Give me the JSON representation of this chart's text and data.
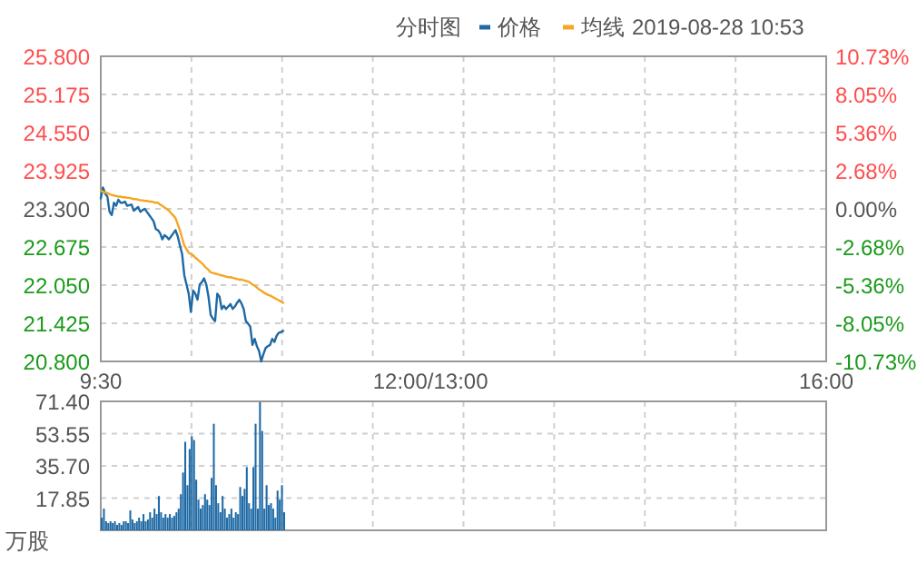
{
  "chart_data": [
    {
      "type": "line",
      "subtitle": "分时图",
      "legend": "top",
      "grid": true,
      "annotations": [
        "2019-08-28 10:53"
      ],
      "categories": [
        "9:30",
        null,
        null,
        null,
        null,
        null,
        null,
        null,
        null,
        null,
        null,
        null,
        null,
        null,
        null,
        null,
        null,
        null,
        null,
        null,
        null,
        null,
        null,
        null,
        null,
        null,
        null,
        null,
        null,
        null,
        null,
        null,
        null,
        null,
        null,
        null,
        null,
        null,
        null,
        null,
        null,
        null,
        null,
        null,
        null,
        null,
        null,
        null,
        null,
        null,
        null,
        null,
        null,
        null,
        null,
        null,
        null,
        null,
        null,
        null,
        null,
        null,
        null,
        null,
        null,
        null,
        null,
        null,
        null,
        null,
        null,
        null,
        null,
        null,
        null,
        null,
        null,
        null,
        null,
        null,
        null,
        null,
        null,
        null,
        null,
        null,
        null,
        null,
        null,
        null,
        null,
        null,
        null,
        null,
        null,
        null,
        null,
        null,
        null,
        null,
        null,
        null,
        null,
        null,
        null,
        null,
        null,
        null,
        null,
        null,
        null,
        null,
        null,
        null,
        null,
        null,
        null,
        null,
        null,
        null,
        null,
        null,
        null,
        null,
        null,
        null,
        null,
        null,
        null,
        null,
        null,
        null,
        null,
        null,
        null,
        null,
        null,
        null,
        null,
        null,
        null,
        null,
        null,
        null,
        null,
        null,
        null,
        null,
        null,
        null,
        "12:00/13:00",
        null,
        null,
        null,
        null,
        null,
        null,
        null,
        null,
        null,
        null,
        null,
        null,
        null,
        null,
        null,
        null,
        null,
        null,
        null,
        null,
        null,
        null,
        null,
        null,
        null,
        null,
        null,
        null,
        null,
        null,
        null,
        null,
        null,
        null,
        null,
        null,
        null,
        null,
        null,
        null,
        null,
        null,
        null,
        null,
        null,
        null,
        null,
        null,
        null,
        null,
        null,
        null,
        null,
        null,
        null,
        null,
        null,
        null,
        null,
        null,
        null,
        null,
        null,
        null,
        null,
        null,
        null,
        null,
        null,
        null,
        null,
        null,
        null,
        null,
        null,
        null,
        null,
        null,
        null,
        null,
        null,
        null,
        null,
        null,
        null,
        null,
        null,
        null,
        null,
        null,
        null,
        null,
        null,
        null,
        null,
        null,
        null,
        null,
        null,
        null,
        null,
        null,
        null,
        null,
        null,
        null,
        null,
        null,
        null,
        null,
        null,
        null,
        null,
        null,
        null,
        null,
        null,
        null,
        null,
        null,
        null,
        null,
        null,
        null,
        null,
        null,
        null,
        null,
        null,
        null,
        null,
        null,
        null,
        null,
        null,
        null,
        null,
        null,
        null,
        null,
        null,
        null,
        null,
        null,
        null,
        null,
        null,
        null,
        null,
        null,
        null,
        null,
        null,
        null,
        null,
        null,
        null,
        null,
        null,
        null,
        null,
        null,
        null,
        null,
        null,
        null,
        null,
        null,
        null,
        null,
        null,
        null,
        null,
        null,
        null,
        null,
        null,
        null,
        null,
        "16:00"
      ],
      "ylim": [
        20.8,
        25.8
      ],
      "yticks": [
        {
          "value": 20.8,
          "label": "20.800"
        },
        {
          "value": 21.425,
          "label": "21.425"
        },
        {
          "value": 22.05,
          "label": "22.050"
        },
        {
          "value": 22.675,
          "label": "22.675"
        },
        {
          "value": 23.3,
          "label": "23.300"
        },
        {
          "value": 23.925,
          "label": "23.925"
        },
        {
          "value": 24.55,
          "label": "24.550"
        },
        {
          "value": 25.175,
          "label": "25.175"
        },
        {
          "value": 25.8,
          "label": "25.800"
        }
      ],
      "y2lim": [
        -10.73,
        10.73
      ],
      "y2ticks": [
        {
          "value": -10.73,
          "label": "-10.73%"
        },
        {
          "value": -8.05,
          "label": "-8.05%"
        },
        {
          "value": -5.36,
          "label": "-5.36%"
        },
        {
          "value": -2.68,
          "label": "-2.68%"
        },
        {
          "value": 0,
          "label": "0.00%"
        },
        {
          "value": 2.68,
          "label": "2.68%"
        },
        {
          "value": 5.36,
          "label": "5.36%"
        },
        {
          "value": 8.05,
          "label": "8.05%"
        },
        {
          "value": 10.73,
          "label": "10.73%"
        }
      ],
      "series": [
        {
          "name": "价格",
          "color": "#1f6aa5",
          "values": [
            23.47,
            23.65,
            23.55,
            23.5,
            23.25,
            23.2,
            23.4,
            23.35,
            23.45,
            23.4,
            23.4,
            23.42,
            23.35,
            23.36,
            23.37,
            23.27,
            23.3,
            23.33,
            23.25,
            23.28,
            23.3,
            23.25,
            23.2,
            23.15,
            23.1,
            22.97,
            22.95,
            22.9,
            22.8,
            22.87,
            22.84,
            22.8,
            22.85,
            22.9,
            22.95,
            22.85,
            22.7,
            22.56,
            22.21,
            22.06,
            21.91,
            21.61,
            21.96,
            21.91,
            21.81,
            22.06,
            22.1,
            22.16,
            22.06,
            21.86,
            21.56,
            21.5,
            21.46,
            21.91,
            21.86,
            21.66,
            21.71,
            21.66,
            21.7,
            21.74,
            21.66,
            21.7,
            21.76,
            21.81,
            21.75,
            21.66,
            21.46,
            21.42,
            21.37,
            21.07,
            21.17,
            21.05,
            20.97,
            20.8,
            20.92,
            21.02,
            21.05,
            21.07,
            21.17,
            21.12,
            21.22,
            21.27,
            21.28,
            21.3,
            null,
            null,
            null,
            null,
            null,
            null,
            null,
            null,
            null,
            null,
            null,
            null,
            null,
            null,
            null,
            null,
            null,
            null,
            null,
            null,
            null,
            null,
            null,
            null,
            null,
            null,
            null,
            null,
            null,
            null,
            null,
            null,
            null,
            null,
            null,
            null,
            null,
            null,
            null,
            null,
            null,
            null,
            null,
            null,
            null,
            null,
            null,
            null,
            null,
            null,
            null,
            null,
            null,
            null,
            null,
            null,
            null,
            null,
            null,
            null,
            null,
            null,
            null,
            null,
            null,
            null,
            null,
            null,
            null,
            null,
            null,
            null,
            null,
            null,
            null,
            null,
            null,
            null,
            null,
            null,
            null,
            null,
            null,
            null,
            null,
            null,
            null,
            null,
            null,
            null,
            null,
            null,
            null,
            null,
            null,
            null,
            null,
            null,
            null,
            null,
            null,
            null,
            null,
            null,
            null,
            null,
            null,
            null,
            null,
            null,
            null,
            null,
            null,
            null,
            null,
            null,
            null,
            null,
            null,
            null,
            null,
            null,
            null,
            null,
            null,
            null,
            null,
            null,
            null,
            null,
            null,
            null,
            null,
            null,
            null,
            null,
            null,
            null,
            null,
            null,
            null,
            null,
            null,
            null,
            null,
            null,
            null,
            null,
            null,
            null,
            null,
            null,
            null,
            null,
            null,
            null,
            null,
            null,
            null,
            null,
            null,
            null,
            null,
            null,
            null,
            null,
            null,
            null,
            null,
            null,
            null,
            null,
            null,
            null,
            null,
            null,
            null,
            null,
            null,
            null,
            null,
            null,
            null,
            null,
            null,
            null,
            null,
            null,
            null,
            null,
            null,
            null,
            null,
            null,
            null,
            null,
            null,
            null,
            null,
            null,
            null,
            null,
            null,
            null,
            null,
            null,
            null,
            null,
            null,
            null,
            null,
            null,
            null,
            null,
            null,
            null,
            null,
            null,
            null,
            null,
            null,
            null,
            null,
            null,
            null,
            null,
            null,
            null,
            null,
            null,
            null,
            null,
            null,
            null,
            null,
            null,
            null,
            null,
            null,
            null,
            null,
            null,
            null,
            null,
            null,
            null,
            null
          ]
        },
        {
          "name": "均线",
          "color": "#f5a623",
          "values": [
            23.6,
            23.58,
            23.57,
            23.56,
            23.54,
            23.53,
            23.52,
            23.51,
            23.5,
            23.5,
            23.49,
            23.49,
            23.48,
            23.48,
            23.47,
            23.46,
            23.46,
            23.45,
            23.44,
            23.44,
            23.43,
            23.43,
            23.42,
            23.42,
            23.41,
            23.4,
            23.4,
            23.37,
            23.35,
            23.32,
            23.3,
            23.27,
            23.23,
            23.19,
            23.15,
            23.05,
            22.95,
            22.82,
            22.7,
            22.64,
            22.58,
            22.56,
            22.54,
            22.5,
            22.47,
            22.44,
            22.41,
            22.37,
            22.33,
            22.3,
            22.26,
            22.25,
            22.24,
            22.23,
            22.22,
            22.21,
            22.2,
            22.19,
            22.18,
            22.18,
            22.17,
            22.16,
            22.15,
            22.14,
            22.14,
            22.13,
            22.12,
            22.11,
            22.09,
            22.06,
            22.04,
            22.01,
            21.98,
            21.96,
            21.93,
            21.91,
            21.89,
            21.88,
            21.86,
            21.84,
            21.82,
            21.8,
            21.78,
            21.76,
            null,
            null,
            null,
            null,
            null,
            null,
            null,
            null,
            null,
            null,
            null,
            null,
            null,
            null,
            null,
            null,
            null,
            null,
            null,
            null,
            null,
            null,
            null,
            null,
            null,
            null,
            null,
            null,
            null,
            null,
            null,
            null,
            null,
            null,
            null,
            null,
            null,
            null,
            null,
            null,
            null,
            null,
            null,
            null,
            null,
            null,
            null,
            null,
            null,
            null,
            null,
            null,
            null,
            null,
            null,
            null,
            null,
            null,
            null,
            null,
            null,
            null,
            null,
            null,
            null,
            null,
            null,
            null,
            null,
            null,
            null,
            null,
            null,
            null,
            null,
            null,
            null,
            null,
            null,
            null,
            null,
            null,
            null,
            null,
            null,
            null,
            null,
            null,
            null,
            null,
            null,
            null,
            null,
            null,
            null,
            null,
            null,
            null,
            null,
            null,
            null,
            null,
            null,
            null,
            null,
            null,
            null,
            null,
            null,
            null,
            null,
            null,
            null,
            null,
            null,
            null,
            null,
            null,
            null,
            null,
            null,
            null,
            null,
            null,
            null,
            null,
            null,
            null,
            null,
            null,
            null,
            null,
            null,
            null,
            null,
            null,
            null,
            null,
            null,
            null,
            null,
            null,
            null,
            null,
            null,
            null,
            null,
            null,
            null,
            null,
            null,
            null,
            null,
            null,
            null,
            null,
            null,
            null,
            null,
            null,
            null,
            null,
            null,
            null,
            null,
            null,
            null,
            null,
            null,
            null,
            null,
            null,
            null,
            null,
            null,
            null,
            null,
            null,
            null,
            null,
            null,
            null,
            null,
            null,
            null,
            null,
            null,
            null,
            null,
            null,
            null,
            null,
            null,
            null,
            null,
            null,
            null,
            null,
            null,
            null,
            null,
            null,
            null,
            null,
            null,
            null,
            null,
            null,
            null,
            null,
            null,
            null,
            null,
            null,
            null,
            null,
            null,
            null,
            null,
            null,
            null,
            null,
            null,
            null,
            null,
            null,
            null,
            null,
            null,
            null,
            null,
            null,
            null,
            null,
            null,
            null,
            null,
            null,
            null,
            null,
            null,
            null,
            null,
            null,
            null,
            null,
            null
          ]
        }
      ]
    },
    {
      "type": "bar",
      "ylabel": "万股",
      "grid": true,
      "tick_labels": "y",
      "color": "#1f6aa5",
      "categories": [
        null,
        null,
        null,
        null,
        null,
        null,
        null,
        null,
        null,
        null,
        null,
        null,
        null,
        null,
        null,
        null,
        null,
        null,
        null,
        null,
        null,
        null,
        null,
        null,
        null,
        null,
        null,
        null,
        null,
        null,
        null,
        null,
        null,
        null,
        null,
        null,
        null,
        null,
        null,
        null,
        null,
        null,
        null,
        null,
        null,
        null,
        null,
        null,
        null,
        null,
        null,
        null,
        null,
        null,
        null,
        null,
        null,
        null,
        null,
        null,
        null,
        null,
        null,
        null,
        null,
        null,
        null,
        null,
        null,
        null,
        null,
        null,
        null,
        null,
        null,
        null,
        null,
        null,
        null,
        null,
        null,
        null,
        null,
        null,
        null,
        null,
        null,
        null,
        null,
        null,
        null,
        null,
        null,
        null,
        null,
        null,
        null,
        null,
        null,
        null,
        null,
        null,
        null,
        null,
        null,
        null,
        null,
        null,
        null,
        null,
        null,
        null,
        null,
        null,
        null,
        null,
        null,
        null,
        null,
        null,
        null,
        null,
        null,
        null,
        null,
        null,
        null,
        null,
        null,
        null,
        null,
        null,
        null,
        null,
        null,
        null,
        null,
        null,
        null,
        null,
        null,
        null,
        null,
        null,
        null,
        null,
        null,
        null,
        null,
        null,
        null,
        null,
        null,
        null,
        null,
        null,
        null,
        null,
        null,
        null,
        null,
        null,
        null,
        null,
        null,
        null,
        null,
        null,
        null,
        null,
        null,
        null,
        null,
        null,
        null,
        null,
        null,
        null,
        null,
        null,
        null,
        null,
        null,
        null,
        null,
        null,
        null,
        null,
        null,
        null,
        null,
        null,
        null,
        null,
        null,
        null,
        null,
        null,
        null,
        null,
        null,
        null,
        null,
        null,
        null,
        null,
        null,
        null,
        null,
        null,
        null,
        null,
        null,
        null,
        null,
        null,
        null,
        null,
        null,
        null,
        null,
        null,
        null,
        null,
        null,
        null,
        null,
        null,
        null,
        null,
        null,
        null,
        null,
        null,
        null,
        null,
        null,
        null,
        null,
        null,
        null,
        null,
        null,
        null,
        null,
        null,
        null,
        null,
        null,
        null,
        null,
        null,
        null,
        null,
        null,
        null,
        null,
        null,
        null,
        null,
        null,
        null,
        null,
        null,
        null,
        null,
        null,
        null,
        null,
        null,
        null,
        null,
        null,
        null,
        null,
        null,
        null,
        null,
        null,
        null,
        null,
        null,
        null,
        null,
        null,
        null,
        null,
        null,
        null,
        null,
        null,
        null,
        null,
        null,
        null,
        null,
        null,
        null,
        null,
        null,
        null,
        null,
        null,
        null,
        null,
        null,
        null,
        null,
        null,
        null,
        null,
        null,
        null,
        null,
        null,
        null,
        null,
        null,
        null,
        null,
        null,
        null,
        null,
        null,
        null,
        null,
        null,
        null,
        null,
        null,
        null
      ],
      "ylim": [
        0,
        71.4
      ],
      "yticks": [
        {
          "value": 17.85,
          "label": "17.85"
        },
        {
          "value": 35.7,
          "label": "35.70"
        },
        {
          "value": 53.55,
          "label": "53.55"
        },
        {
          "value": 71.4,
          "label": "71.40"
        }
      ],
      "values": [
        7,
        12,
        5,
        4,
        5,
        4,
        5,
        3,
        4,
        3,
        5,
        5,
        4,
        11,
        6,
        4,
        5,
        7,
        5,
        9,
        5,
        6,
        10,
        7,
        12,
        9,
        19,
        10,
        7,
        9,
        7,
        9,
        7,
        8,
        10,
        12,
        20,
        32,
        49,
        25,
        45,
        52,
        50,
        28,
        17,
        12,
        14,
        20,
        17,
        14,
        29,
        59,
        25,
        15,
        10,
        19,
        12,
        7,
        9,
        12,
        7,
        10,
        9,
        24,
        19,
        23,
        35,
        15,
        12,
        35,
        59,
        12,
        71,
        55,
        12,
        25,
        14,
        15,
        12,
        7,
        22,
        17,
        25,
        10,
        null,
        null,
        null,
        null,
        null,
        null,
        null,
        null,
        null,
        null,
        null,
        null,
        null,
        null,
        null,
        null,
        null,
        null,
        null,
        null,
        null,
        null,
        null,
        null,
        null,
        null,
        null,
        null,
        null,
        null,
        null,
        null,
        null,
        null,
        null,
        null,
        null,
        null,
        null,
        null,
        null,
        null,
        null,
        null,
        null,
        null,
        null,
        null,
        null,
        null,
        null,
        null,
        null,
        null,
        null,
        null,
        null,
        null,
        null,
        null,
        null,
        null,
        null,
        null,
        null,
        null,
        null,
        null,
        null,
        null,
        null,
        null,
        null,
        null,
        null,
        null,
        null,
        null,
        null,
        null,
        null,
        null,
        null,
        null,
        null,
        null,
        null,
        null,
        null,
        null,
        null,
        null,
        null,
        null,
        null,
        null,
        null,
        null,
        null,
        null,
        null,
        null,
        null,
        null,
        null,
        null,
        null,
        null,
        null,
        null,
        null,
        null,
        null,
        null,
        null,
        null,
        null,
        null,
        null,
        null,
        null,
        null,
        null,
        null,
        null,
        null,
        null,
        null,
        null,
        null,
        null,
        null,
        null,
        null,
        null,
        null,
        null,
        null,
        null,
        null,
        null,
        null,
        null,
        null,
        null,
        null,
        null,
        null,
        null,
        null,
        null,
        null,
        null,
        null,
        null,
        null,
        null,
        null,
        null,
        null,
        null,
        null,
        null,
        null,
        null,
        null,
        null,
        null,
        null,
        null,
        null,
        null,
        null,
        null,
        null,
        null,
        null,
        null,
        null,
        null,
        null,
        null,
        null,
        null,
        null,
        null,
        null,
        null,
        null,
        null,
        null,
        null,
        null,
        null,
        null,
        null,
        null,
        null,
        null,
        null,
        null,
        null,
        null,
        null,
        null,
        null,
        null,
        null,
        null,
        null,
        null,
        null,
        null,
        null,
        null,
        null,
        null,
        null,
        null,
        null,
        null,
        null,
        null,
        null,
        null,
        null,
        null,
        null,
        null,
        null,
        null,
        null,
        null,
        null,
        null,
        null,
        null,
        null,
        null,
        null,
        null,
        null,
        null,
        null,
        null,
        null,
        null
      ]
    }
  ]
}
